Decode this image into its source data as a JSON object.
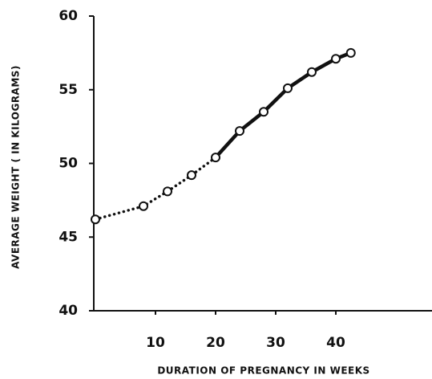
{
  "chart_data": {
    "type": "line",
    "x_label": "DURATION OF PREGNANCY IN WEEKS",
    "y_label": "AVERAGE WEIGHT ( IN KILOGRAMS)",
    "x": [
      0,
      8,
      12,
      16,
      20,
      24,
      28,
      32,
      36,
      40,
      42.5
    ],
    "values": [
      46.2,
      47.1,
      48.1,
      49.2,
      50.4,
      52.2,
      53.5,
      55.1,
      56.2,
      57.1,
      57.5
    ],
    "solid_from_x": 20,
    "color": "#111111",
    "marker": "open-circle",
    "xlim": [
      0,
      56
    ],
    "xticks": [
      10,
      20,
      30,
      40
    ],
    "ylim": [
      40,
      60
    ],
    "yticks": [
      40,
      45,
      50,
      55,
      60
    ],
    "grid": false
  }
}
